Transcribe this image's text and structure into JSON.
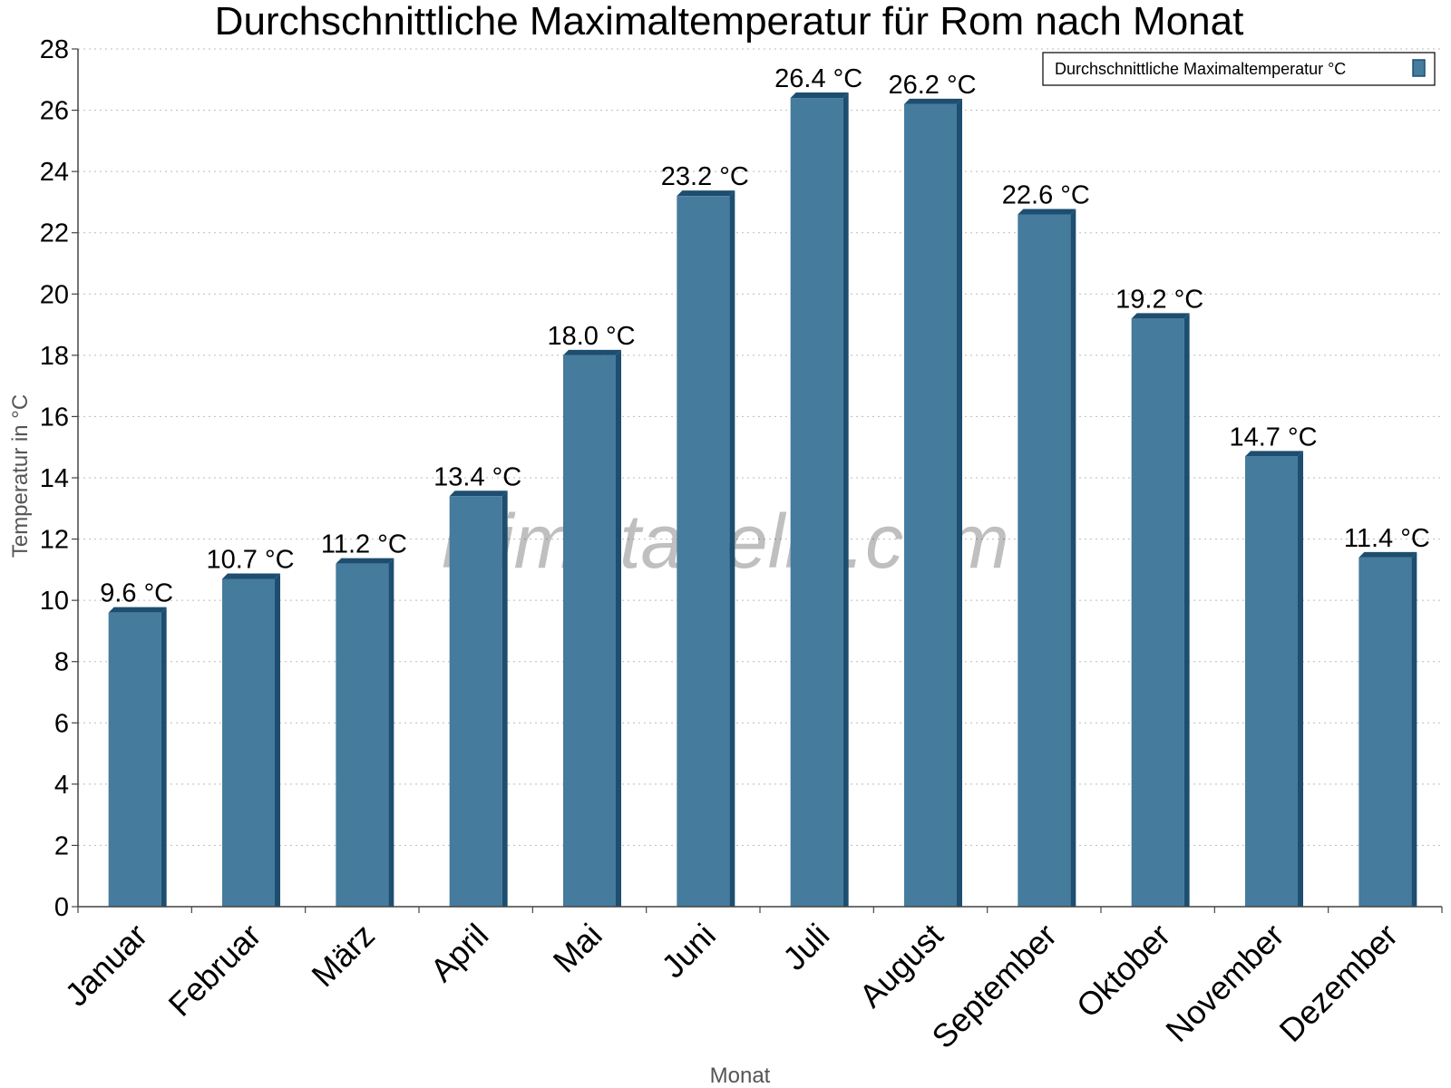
{
  "chart_data": {
    "type": "bar",
    "title": "Durchschnittliche Maximaltemperatur für Rom nach Monat",
    "xlabel": "Monat",
    "ylabel": "Temperatur in °C",
    "categories": [
      "Januar",
      "Februar",
      "März",
      "April",
      "Mai",
      "Juni",
      "Juli",
      "August",
      "September",
      "Oktober",
      "November",
      "Dezember"
    ],
    "series": [
      {
        "name": "Durchschnittliche Maximaltemperatur °C",
        "values": [
          9.6,
          10.7,
          11.2,
          13.4,
          18.0,
          23.2,
          26.4,
          26.2,
          22.6,
          19.2,
          14.7,
          11.4
        ],
        "labels": [
          "9.6 °C",
          "10.7 °C",
          "11.2 °C",
          "13.4 °C",
          "18.0 °C",
          "23.2 °C",
          "26.4 °C",
          "26.2 °C",
          "22.6 °C",
          "19.2 °C",
          "14.7 °C",
          "11.4 °C"
        ]
      }
    ],
    "ylim": [
      0,
      28
    ],
    "yticks": [
      0,
      2,
      4,
      6,
      8,
      10,
      12,
      14,
      16,
      18,
      20,
      22,
      24,
      26,
      28
    ],
    "grid": true,
    "legend_position": "top-right",
    "watermark": "klimatabelle.com",
    "colors": {
      "bar_face": "#457b9d",
      "bar_side": "#1d4e70",
      "axis": "#444444",
      "grid": "#bbbbbb",
      "axis_title": "#555555"
    }
  }
}
